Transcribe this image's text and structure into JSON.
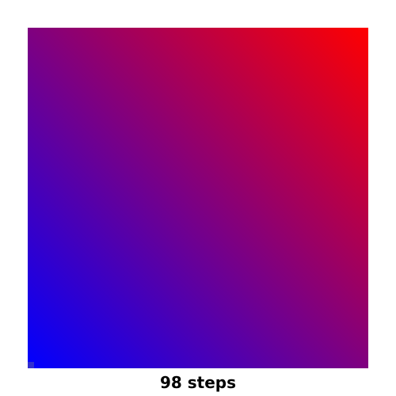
{
  "caption": "98 steps",
  "gradient": {
    "steps": 98,
    "corner_colors": {
      "top_left": "#6a0096",
      "top_right": "#e60014",
      "bottom_left": "#0000ff",
      "bottom_right": "#6b0090"
    },
    "start_color": "#0000ff",
    "end_color": "#ff0000"
  },
  "colors": {
    "background": "#ffffff",
    "caption_text": "#000000"
  }
}
